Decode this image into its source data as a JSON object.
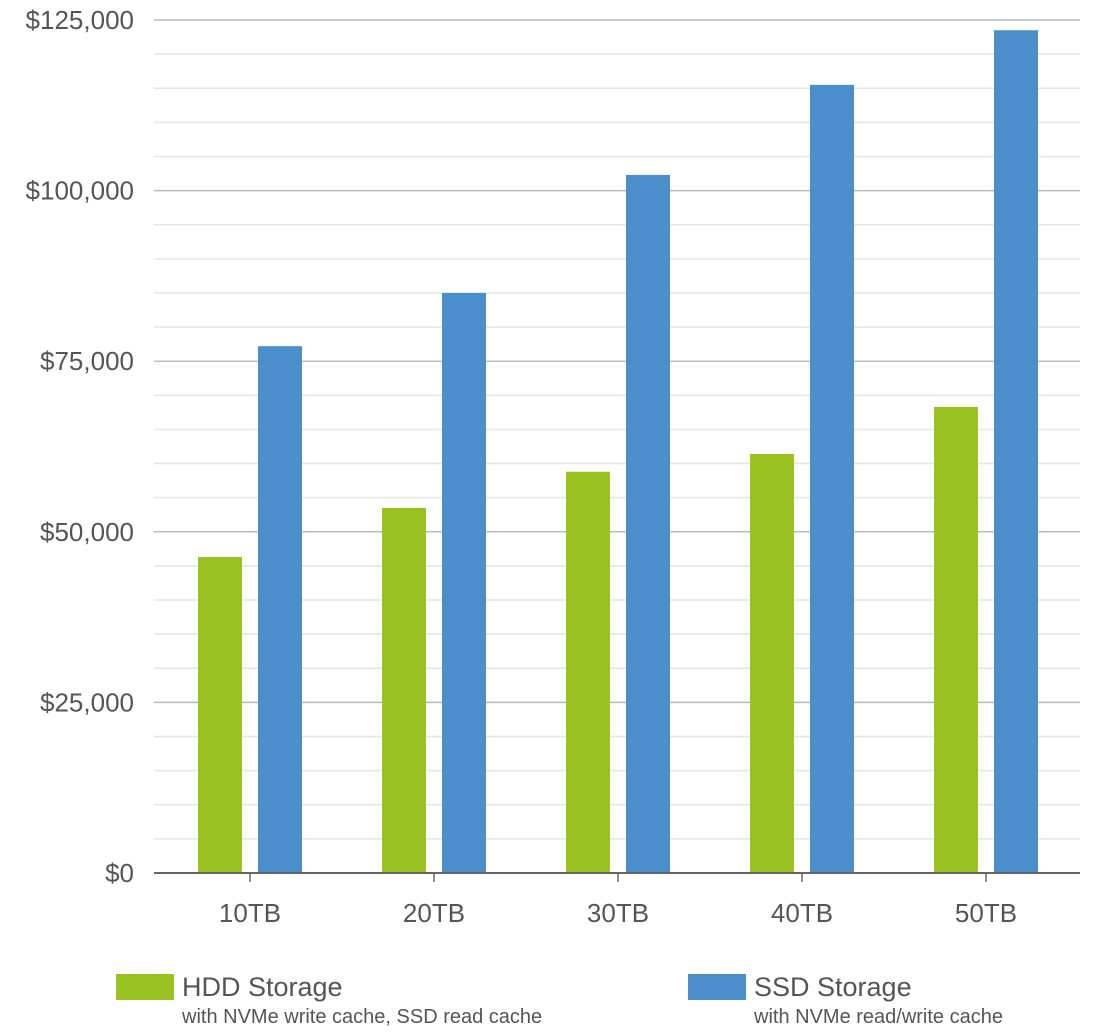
{
  "chart_data": {
    "type": "bar",
    "categories": [
      "10TB",
      "20TB",
      "30TB",
      "40TB",
      "50TB"
    ],
    "series": [
      {
        "name": "HDD Storage",
        "subtitle": "with NVMe write cache, SSD read cache",
        "color": "#98c21f",
        "values": [
          46300,
          53500,
          58800,
          61400,
          68300
        ]
      },
      {
        "name": "SSD Storage",
        "subtitle": "with NVMe read/write cache",
        "color": "#4a8ecb",
        "values": [
          77200,
          85000,
          102300,
          115500,
          123500
        ]
      }
    ],
    "yticks": [
      "$0",
      "$25,000",
      "$50,000",
      "$75,000",
      "$100,000",
      "$125,000"
    ],
    "ylim": [
      0,
      125000
    ],
    "minor_grid_step": 5000,
    "grid": true,
    "legend_position": "bottom",
    "xlabel": "",
    "ylabel": "",
    "title": ""
  }
}
